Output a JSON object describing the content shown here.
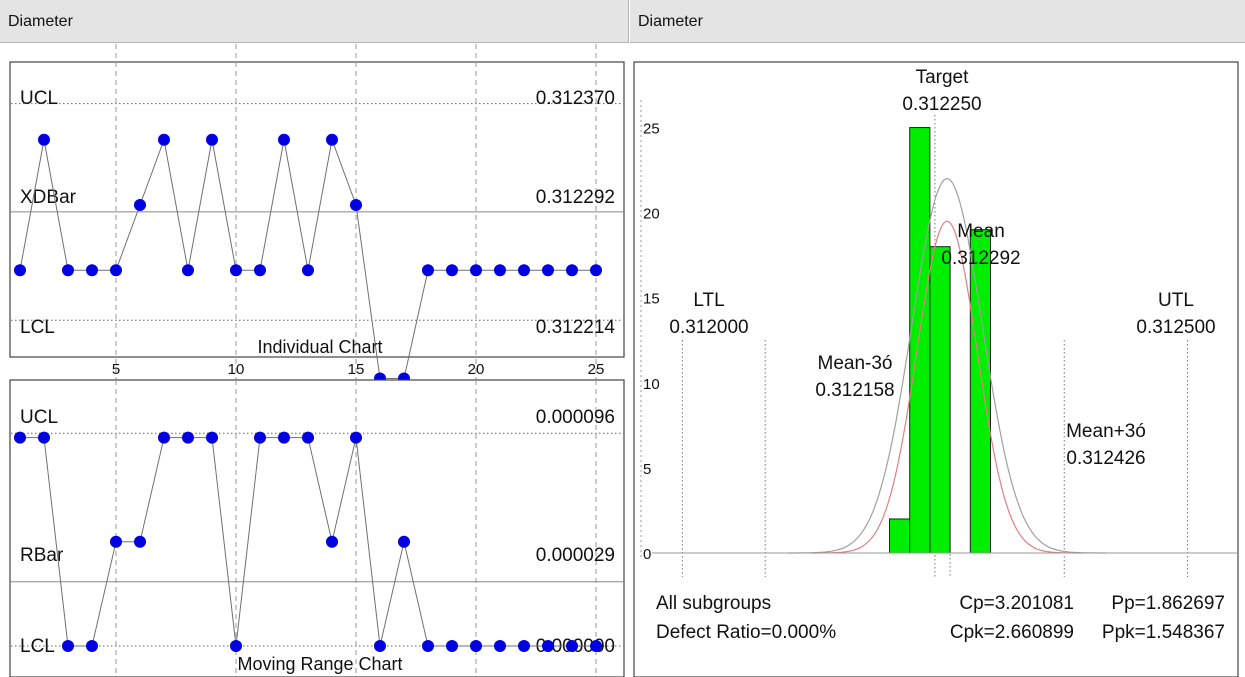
{
  "header_left": "Diameter",
  "header_right": "Diameter",
  "chart_data": [
    {
      "type": "line",
      "title": "Individual Chart",
      "x": [
        1,
        2,
        3,
        4,
        5,
        6,
        7,
        8,
        9,
        10,
        11,
        12,
        13,
        14,
        15,
        16,
        17,
        18,
        19,
        20,
        21,
        22,
        23,
        24,
        25
      ],
      "values": [
        0.31225,
        0.312344,
        0.31225,
        0.31225,
        0.31225,
        0.312297,
        0.312344,
        0.31225,
        0.312344,
        0.31225,
        0.31225,
        0.312344,
        0.31225,
        0.312344,
        0.312297,
        0.312172,
        0.312172,
        0.31225,
        0.31225,
        0.31225,
        0.31225,
        0.31225,
        0.31225,
        0.31225,
        0.31225
      ],
      "xticks": [
        5,
        10,
        15,
        20,
        25
      ],
      "xlim": [
        1,
        26
      ],
      "ylim": [
        0.3121875,
        0.3124
      ],
      "control_lines": [
        {
          "label": "UCL",
          "value": 0.31237,
          "value_text": "0.312370",
          "style": "dotted"
        },
        {
          "label": "XDBar",
          "value": 0.312292,
          "value_text": "0.312292",
          "style": "solid"
        },
        {
          "label": "LCL",
          "value": 0.312214,
          "value_text": "0.312214",
          "style": "dotted"
        }
      ],
      "marker_color": "#0000e0"
    },
    {
      "type": "line",
      "title": "Moving Range Chart",
      "x": [
        1,
        2,
        3,
        4,
        5,
        6,
        7,
        8,
        9,
        10,
        11,
        12,
        13,
        14,
        15,
        16,
        17,
        18,
        19,
        20,
        21,
        22,
        23,
        24,
        25
      ],
      "values": [
        9.4e-05,
        9.4e-05,
        0,
        0,
        4.7e-05,
        4.7e-05,
        9.4e-05,
        9.4e-05,
        9.4e-05,
        0,
        9.4e-05,
        9.4e-05,
        9.4e-05,
        4.7e-05,
        9.4e-05,
        0,
        4.7e-05,
        0,
        0,
        0,
        0,
        0,
        0,
        0,
        0
      ],
      "xlim": [
        1,
        26
      ],
      "ylim": [
        -1.4e-05,
        0.00012
      ],
      "control_lines": [
        {
          "label": "UCL",
          "value": 9.6e-05,
          "value_text": "0.000096",
          "style": "dotted"
        },
        {
          "label": "RBar",
          "value": 2.9e-05,
          "value_text": "0.000029",
          "style": "solid"
        },
        {
          "label": "LCL",
          "value": 0,
          "value_text": "0.000000",
          "style": "dotted"
        }
      ],
      "marker_color": "#0000e0"
    },
    {
      "type": "bar",
      "title": "",
      "bins": [
        {
          "from": 0.312205,
          "to": 0.312225,
          "count": 2
        },
        {
          "from": 0.312225,
          "to": 0.312245,
          "count": 25
        },
        {
          "from": 0.312245,
          "to": 0.312265,
          "count": 18
        },
        {
          "from": 0.312285,
          "to": 0.312305,
          "count": 19
        }
      ],
      "bar_color": "#00ee00",
      "xlim": [
        0.31196,
        0.31255
      ],
      "ylim": [
        0,
        27.5
      ],
      "yticks": [
        0,
        5,
        10,
        15,
        20,
        25
      ],
      "spec_lines": [
        {
          "name": "LTL",
          "value_text": "0.312000",
          "x": 0.312
        },
        {
          "name": "Mean-3ó",
          "value_text": "0.312158",
          "x": 0.312082
        },
        {
          "name": "Target",
          "value_text": "0.312250",
          "x": 0.31225
        },
        {
          "name": "Mean",
          "value_text": "0.312292",
          "x": 0.312265
        },
        {
          "name": "Mean+3ó",
          "value_text": "0.312426",
          "x": 0.312378
        },
        {
          "name": "UTL",
          "value_text": "0.312500",
          "x": 0.3125
        }
      ],
      "curves": {
        "normal_mean": 0.312262,
        "normal_sd": 3.5e-05,
        "normal_peak": 22,
        "fit_mean": 0.312262,
        "fit_sd": 3e-05,
        "fit_peak": 19.5
      }
    }
  ],
  "stats": {
    "row1_label": "All subgroups",
    "row1_cp": "Cp=3.201081",
    "row1_pp": "Pp=1.862697",
    "row2_label": "Defect Ratio=0.000%",
    "row2_cpk": "Cpk=2.660899",
    "row2_ppk": "Ppk=1.548367"
  }
}
